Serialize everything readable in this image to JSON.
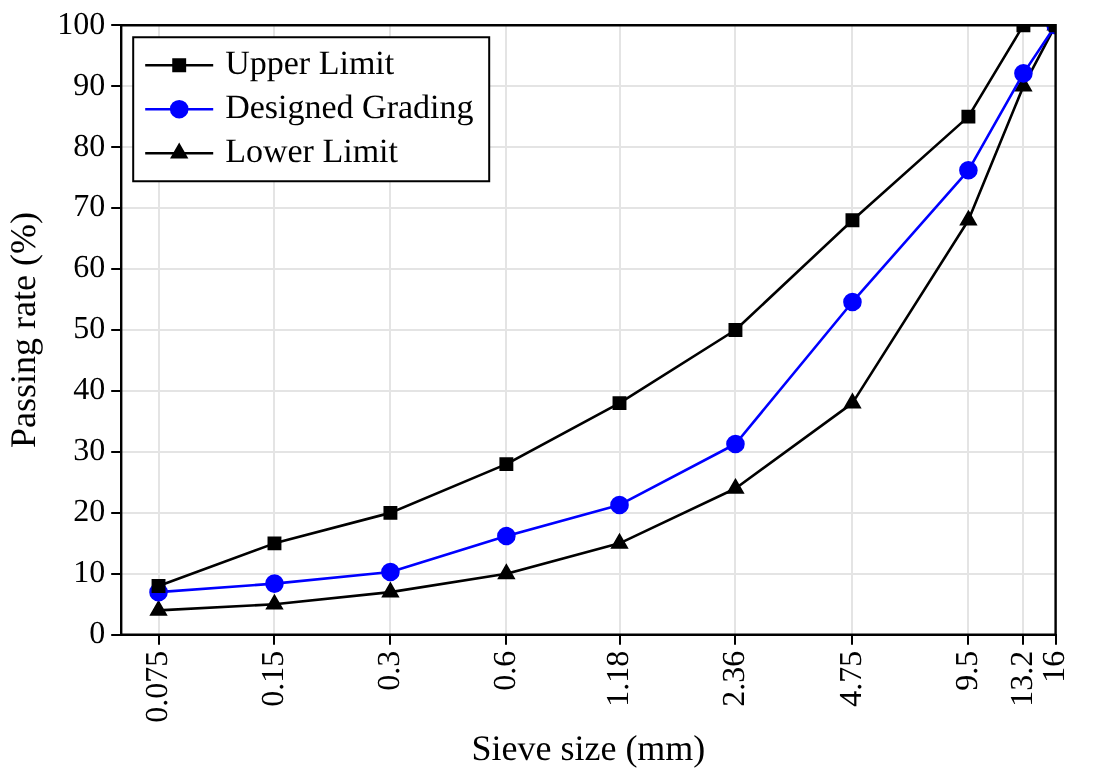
{
  "chart_data": {
    "type": "line",
    "xlabel": "Sieve size (mm)",
    "ylabel": "Passing rate (%)",
    "x": [
      0.075,
      0.15,
      0.3,
      0.6,
      1.18,
      2.36,
      4.75,
      9.5,
      13.2,
      16
    ],
    "series": [
      {
        "name": "Upper Limit",
        "color": "#000000",
        "marker": "square",
        "values": [
          8,
          15,
          20,
          28,
          38,
          50,
          68,
          85,
          100,
          100
        ]
      },
      {
        "name": "Designed Grading",
        "color": "#0000ff",
        "marker": "circle",
        "values": [
          7,
          8.4,
          10.3,
          16.2,
          21.3,
          31.3,
          54.6,
          76.2,
          92.1,
          100
        ]
      },
      {
        "name": "Lower Limit",
        "color": "#000000",
        "marker": "triangle",
        "values": [
          4,
          5,
          7,
          10,
          15,
          24,
          38,
          68,
          90,
          100
        ]
      }
    ],
    "log": "x",
    "xlim": [
      0.06,
      16
    ],
    "xticks": [
      0.075,
      0.15,
      0.3,
      0.6,
      1.18,
      2.36,
      4.75,
      9.5,
      13.2,
      16
    ],
    "ylim": [
      0,
      100
    ],
    "yticks": [
      0,
      10,
      20,
      30,
      40,
      50,
      60,
      70,
      80,
      90,
      100
    ],
    "grid": true,
    "legend": "top left",
    "line_style": "solid"
  }
}
